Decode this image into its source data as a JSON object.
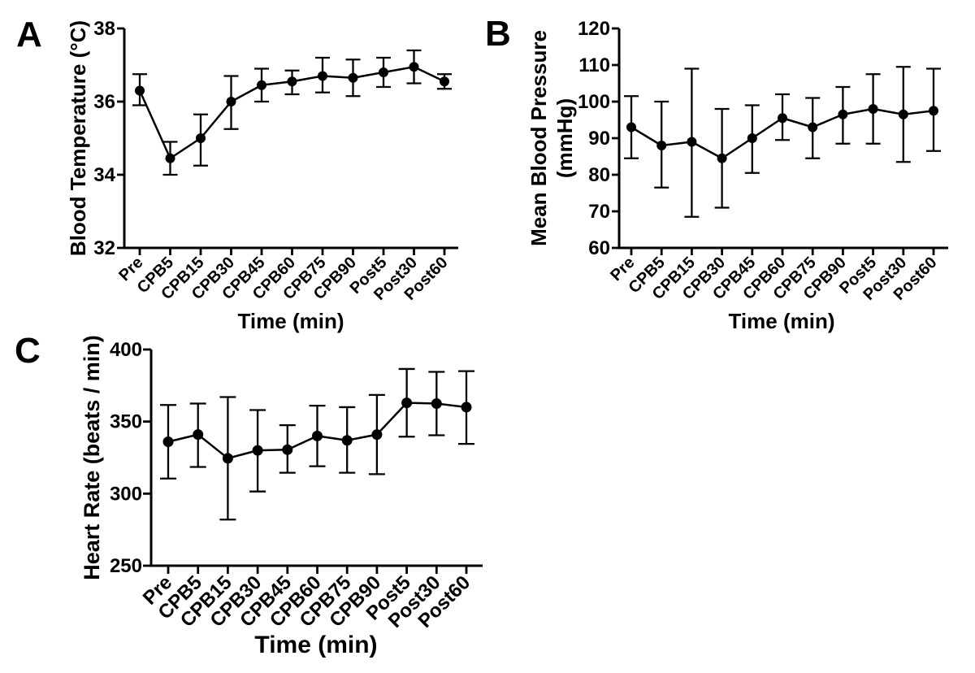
{
  "figure": {
    "type": "scientific-figure",
    "background": "#ffffff",
    "ink_color": "#000000",
    "panel_letters": [
      "A",
      "B",
      "C"
    ]
  },
  "chart_data": [
    {
      "panel": "A",
      "type": "line",
      "title": "",
      "xlabel": "Time (min)",
      "ylabel": "Blood Temperature (°C)",
      "ylabel_lines": [
        "Blood Temperature (°C)"
      ],
      "categories": [
        "Pre",
        "CPB5",
        "CPB15",
        "CPB30",
        "CPB45",
        "CPB60",
        "CPB75",
        "CPB90",
        "Post5",
        "Post30",
        "Post60"
      ],
      "series": [
        {
          "name": "Blood Temperature",
          "values": [
            36.3,
            34.45,
            35.0,
            36.0,
            36.45,
            36.55,
            36.7,
            36.65,
            36.8,
            36.95,
            36.55
          ],
          "error_upper": [
            36.75,
            34.9,
            35.65,
            36.7,
            36.9,
            36.85,
            37.2,
            37.15,
            37.2,
            37.4,
            36.75
          ],
          "error_lower": [
            35.9,
            34.0,
            34.25,
            35.25,
            36.0,
            36.2,
            36.25,
            36.15,
            36.4,
            36.5,
            36.35
          ]
        }
      ],
      "ylim": [
        32,
        38
      ],
      "yticks": [
        32,
        34,
        36,
        38
      ],
      "marker": "filled-circle",
      "error_bars": "vertical-with-caps",
      "grid": false,
      "legend": "none",
      "color": "#000000"
    },
    {
      "panel": "B",
      "type": "line",
      "title": "",
      "xlabel": "Time (min)",
      "ylabel": "Mean Blood Pressure (mmHg)",
      "ylabel_lines": [
        "Mean Blood Pressure",
        "(mmHg)"
      ],
      "categories": [
        "Pre",
        "CPB5",
        "CPB15",
        "CPB30",
        "CPB45",
        "CPB60",
        "CPB75",
        "CPB90",
        "Post5",
        "Post30",
        "Post60"
      ],
      "series": [
        {
          "name": "Mean Blood Pressure",
          "values": [
            93,
            88,
            89,
            84.5,
            90,
            95.5,
            93,
            96.5,
            98,
            96.5,
            97.5
          ],
          "error_upper": [
            101.5,
            100,
            109,
            98,
            99,
            102,
            101,
            104,
            107.5,
            109.5,
            109
          ],
          "error_lower": [
            84.5,
            76.5,
            68.5,
            71,
            80.5,
            89.5,
            84.5,
            88.5,
            88.5,
            83.5,
            86.5
          ]
        }
      ],
      "ylim": [
        60,
        120
      ],
      "yticks": [
        60,
        70,
        80,
        90,
        100,
        110,
        120
      ],
      "marker": "filled-circle",
      "error_bars": "vertical-with-caps",
      "grid": false,
      "legend": "none",
      "color": "#000000"
    },
    {
      "panel": "C",
      "type": "line",
      "title": "",
      "xlabel": "Time (min)",
      "ylabel": "Heart Rate (beats / min)",
      "ylabel_lines": [
        "Heart Rate (beats / min)"
      ],
      "categories": [
        "Pre",
        "CPB5",
        "CPB15",
        "CPB30",
        "CPB45",
        "CPB60",
        "CPB75",
        "CPB90",
        "Post5",
        "Post30",
        "Post60"
      ],
      "series": [
        {
          "name": "Heart Rate",
          "values": [
            336,
            341,
            324.5,
            330,
            330.5,
            340,
            337,
            341,
            363,
            362.5,
            360
          ],
          "error_upper": [
            361.5,
            362.5,
            367,
            358,
            347.5,
            361,
            360,
            368.5,
            386.5,
            384.5,
            385
          ],
          "error_lower": [
            310.5,
            318.5,
            282,
            301.5,
            314.5,
            319,
            314.5,
            313.5,
            339.5,
            340.5,
            334.5
          ]
        }
      ],
      "ylim": [
        250,
        400
      ],
      "yticks": [
        250,
        300,
        350,
        400
      ],
      "marker": "filled-circle",
      "error_bars": "vertical-with-caps",
      "grid": false,
      "legend": "none",
      "color": "#000000"
    }
  ]
}
